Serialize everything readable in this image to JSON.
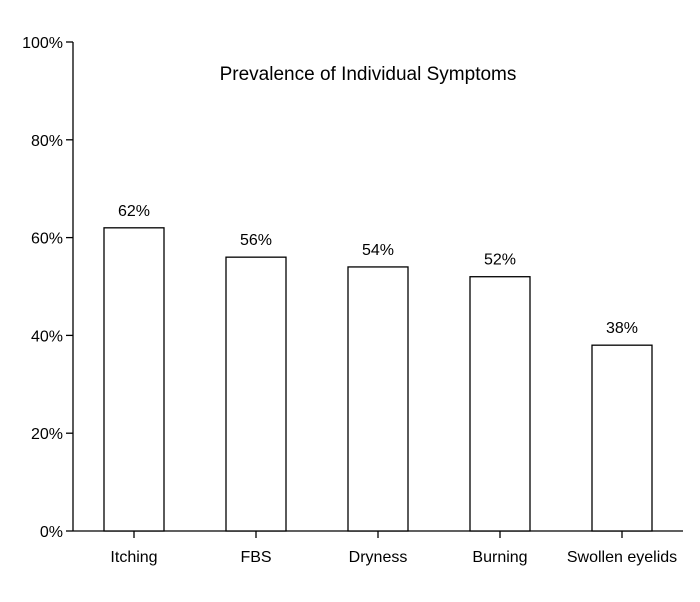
{
  "chart_data": {
    "type": "bar",
    "title": "Prevalence of Individual Symptoms",
    "xlabel": "",
    "ylabel": "",
    "categories": [
      "Itching",
      "FBS",
      "Dryness",
      "Burning",
      "Swollen eyelids"
    ],
    "values": [
      62,
      56,
      54,
      52,
      38
    ],
    "data_labels": [
      "62%",
      "56%",
      "54%",
      "52%",
      "38%"
    ],
    "ylim": [
      0,
      100
    ],
    "yticks": [
      0,
      20,
      40,
      60,
      80,
      100
    ],
    "ytick_labels": [
      "0%",
      "20%",
      "40%",
      "60%",
      "80%",
      "100%"
    ],
    "grid": false,
    "colors": {
      "bar_fill": "#ffffff",
      "bar_stroke": "#000000",
      "axis": "#000000",
      "text": "#000000"
    }
  }
}
